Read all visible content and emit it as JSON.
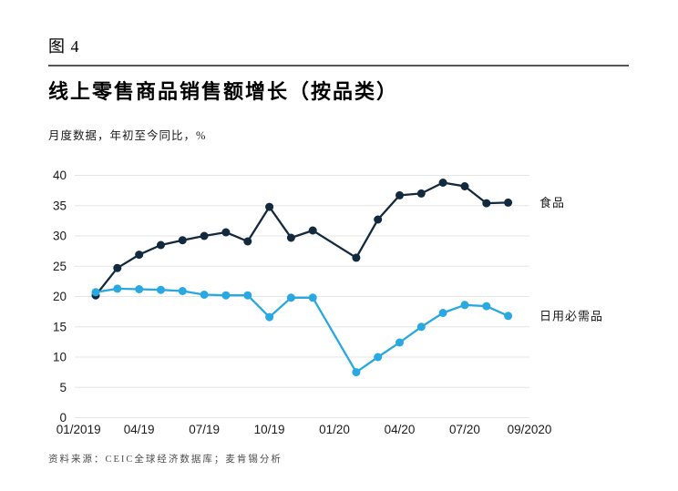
{
  "header": {
    "figure_label": "图 4",
    "title": "线上零售商品销售额增长（按品类）",
    "subtitle": "月度数据，年初至今同比，%"
  },
  "footer": {
    "source": "资料来源：CEIC全球经济数据库；麦肯锡分析"
  },
  "colors": {
    "food_series": "#132a3e",
    "daily_necessities_series": "#29a8e1",
    "gridline": "#e5e5e5",
    "axis_text": "#1a1a1a",
    "header_rule": "#565656",
    "source_text": "#4d4d4d"
  },
  "chart_data": {
    "type": "line",
    "title": "线上零售商品销售额增长（按品类）",
    "subtitle": "月度数据，年初至今同比，%",
    "ylim": [
      0,
      40
    ],
    "y_ticks": [
      0,
      5,
      10,
      15,
      20,
      25,
      30,
      35,
      40
    ],
    "grid": "horizontal-only",
    "legend_position": "right-of-line-end",
    "x_layout_hint": "month_index counts months from 01/2019; no data point at month 12 (01/20), series resume at 02/20",
    "x_ticks": [
      {
        "label": "01/2019",
        "month_index": 0
      },
      {
        "label": "04/19",
        "month_index": 3
      },
      {
        "label": "07/19",
        "month_index": 6
      },
      {
        "label": "10/19",
        "month_index": 9
      },
      {
        "label": "01/20",
        "month_index": 12
      },
      {
        "label": "04/20",
        "month_index": 15
      },
      {
        "label": "07/20",
        "month_index": 18
      },
      {
        "label": "09/2020",
        "month_index": 20
      }
    ],
    "series": [
      {
        "name": "食品",
        "key": "food",
        "color": "#132a3e",
        "points": [
          {
            "m": 1,
            "v": 20.2
          },
          {
            "m": 2,
            "v": 24.7
          },
          {
            "m": 3,
            "v": 26.9
          },
          {
            "m": 4,
            "v": 28.5
          },
          {
            "m": 5,
            "v": 29.3
          },
          {
            "m": 6,
            "v": 30.0
          },
          {
            "m": 7,
            "v": 30.6
          },
          {
            "m": 8,
            "v": 29.1
          },
          {
            "m": 9,
            "v": 34.8
          },
          {
            "m": 10,
            "v": 29.7
          },
          {
            "m": 11,
            "v": 30.9
          },
          {
            "m": 13,
            "v": 26.4
          },
          {
            "m": 14,
            "v": 32.7
          },
          {
            "m": 15,
            "v": 36.7
          },
          {
            "m": 16,
            "v": 37.0
          },
          {
            "m": 17,
            "v": 38.8
          },
          {
            "m": 18,
            "v": 38.2
          },
          {
            "m": 19,
            "v": 35.4
          },
          {
            "m": 20,
            "v": 35.5
          }
        ]
      },
      {
        "name": "日用必需品",
        "key": "daily-necessities",
        "color": "#29a8e1",
        "points": [
          {
            "m": 1,
            "v": 20.7
          },
          {
            "m": 2,
            "v": 21.3
          },
          {
            "m": 3,
            "v": 21.2
          },
          {
            "m": 4,
            "v": 21.1
          },
          {
            "m": 5,
            "v": 20.9
          },
          {
            "m": 6,
            "v": 20.3
          },
          {
            "m": 7,
            "v": 20.2
          },
          {
            "m": 8,
            "v": 20.2
          },
          {
            "m": 9,
            "v": 16.6
          },
          {
            "m": 10,
            "v": 19.8
          },
          {
            "m": 11,
            "v": 19.8
          },
          {
            "m": 13,
            "v": 7.5
          },
          {
            "m": 14,
            "v": 10.0
          },
          {
            "m": 15,
            "v": 12.4
          },
          {
            "m": 16,
            "v": 15.0
          },
          {
            "m": 17,
            "v": 17.3
          },
          {
            "m": 18,
            "v": 18.6
          },
          {
            "m": 19,
            "v": 18.4
          },
          {
            "m": 20,
            "v": 16.8
          }
        ]
      }
    ]
  }
}
